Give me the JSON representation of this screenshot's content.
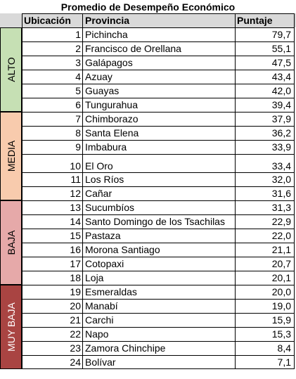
{
  "title": "Promedio de Desempeño Económico",
  "headers": {
    "rank": "Ubicación",
    "province": "Provincia",
    "score": "Puntaje"
  },
  "categories": [
    {
      "label": "ALTO",
      "color": "#c6e0b4"
    },
    {
      "label": "MEDIA",
      "color": "#f8cbad"
    },
    {
      "label": "BAJA",
      "color": "#e6a9a9"
    },
    {
      "label": "MUY BAJA",
      "color": "#a94442",
      "text_color": "#ffffff"
    }
  ],
  "rows": [
    {
      "rank": "1",
      "province": "Pichincha",
      "score": "79,7"
    },
    {
      "rank": "2",
      "province": "Francisco de Orellana",
      "score": "55,1"
    },
    {
      "rank": "3",
      "province": "Galápagos",
      "score": "47,5"
    },
    {
      "rank": "4",
      "province": "Azuay",
      "score": "43,4"
    },
    {
      "rank": "5",
      "province": "Guayas",
      "score": "42,0"
    },
    {
      "rank": "6",
      "province": "Tungurahua",
      "score": "39,4"
    },
    {
      "rank": "7",
      "province": "Chimborazo",
      "score": "37,9"
    },
    {
      "rank": "8",
      "province": "Santa Elena",
      "score": "36,2"
    },
    {
      "rank": "9",
      "province": "Imbabura",
      "score": "33,9"
    },
    {
      "rank": "10",
      "province": "El Oro",
      "score": "33,4"
    },
    {
      "rank": "11",
      "province": "Los Ríos",
      "score": "32,0"
    },
    {
      "rank": "12",
      "province": "Cañar",
      "score": "31,6"
    },
    {
      "rank": "13",
      "province": "Sucumbíos",
      "score": "31,3"
    },
    {
      "rank": "14",
      "province": "Santo Domingo de los Tsachilas",
      "score": "22,9"
    },
    {
      "rank": "15",
      "province": "Pastaza",
      "score": "22,0"
    },
    {
      "rank": "16",
      "province": "Morona Santiago",
      "score": "21,1"
    },
    {
      "rank": "17",
      "province": "Cotopaxi",
      "score": "20,7"
    },
    {
      "rank": "18",
      "province": "Loja",
      "score": "20,1"
    },
    {
      "rank": "19",
      "province": "Esmeraldas",
      "score": "20,0"
    },
    {
      "rank": "20",
      "province": "Manabí",
      "score": "19,0"
    },
    {
      "rank": "21",
      "province": "Carchi",
      "score": "15,9"
    },
    {
      "rank": "22",
      "province": "Napo",
      "score": "15,3"
    },
    {
      "rank": "23",
      "province": "Zamora Chinchipe",
      "score": "8,4"
    },
    {
      "rank": "24",
      "province": "Bolívar",
      "score": "7,1"
    }
  ]
}
